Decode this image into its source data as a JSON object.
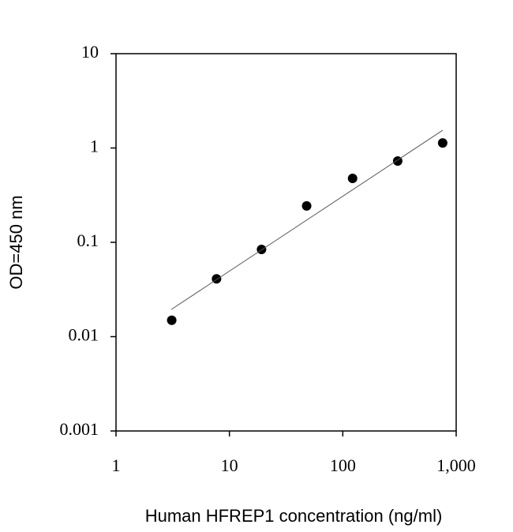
{
  "chart_data": {
    "type": "scatter",
    "x_label": "Human HFREP1 concentration (ng/ml)",
    "y_label": "OD=450 nm",
    "xscale": "log",
    "yscale": "log",
    "xlim": [
      1,
      1000
    ],
    "ylim": [
      0.001,
      10
    ],
    "xticks": [
      1,
      10,
      100,
      {
        "value": 1000,
        "label": "1,000"
      }
    ],
    "yticks": [
      0.001,
      0.01,
      0.1,
      1,
      10
    ],
    "series": [
      {
        "mode": "markers",
        "color": "#000000",
        "x": [
          3.1,
          7.7,
          19.2,
          48,
          122,
          305,
          760
        ],
        "values": [
          0.0149,
          0.041,
          0.084,
          0.243,
          0.476,
          0.728,
          1.13
        ]
      },
      {
        "mode": "line",
        "color": "#555555",
        "x": [
          3.07,
          760
        ],
        "values": [
          0.0194,
          1.54
        ]
      }
    ]
  }
}
